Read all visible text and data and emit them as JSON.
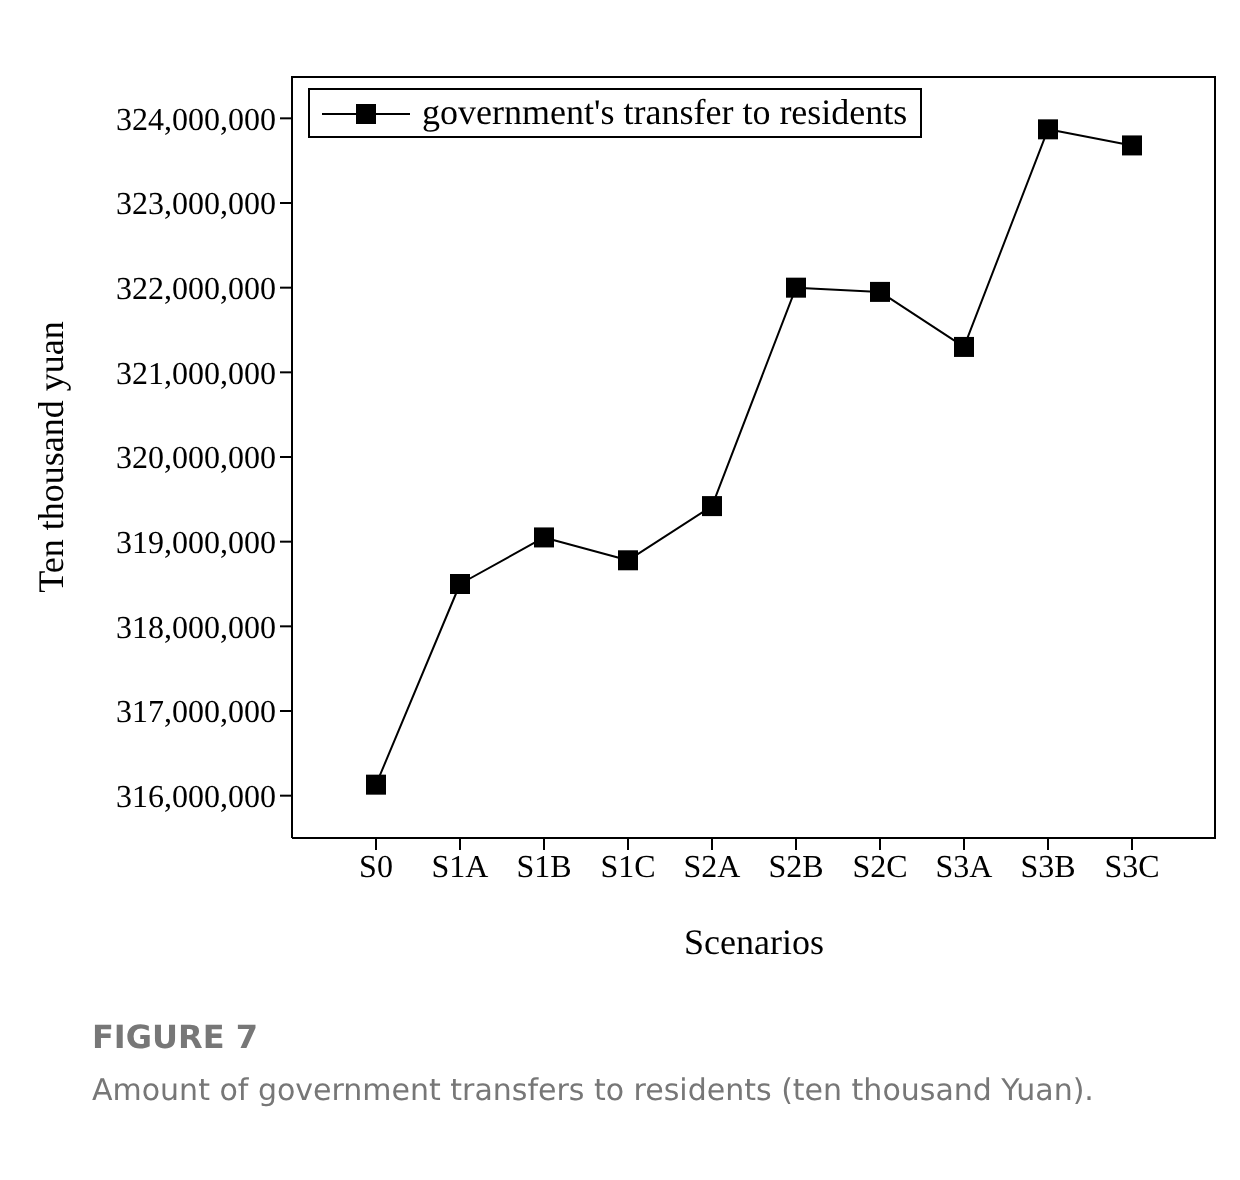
{
  "chart_data": {
    "type": "line",
    "xlabel": "Scenarios",
    "ylabel": "Ten thousand yuan",
    "categories": [
      "S0",
      "S1A",
      "S1B",
      "S1C",
      "S2A",
      "S2B",
      "S2C",
      "S3A",
      "S3B",
      "S3C"
    ],
    "series": [
      {
        "name": "government's transfer to residents",
        "color": "#000000",
        "values": [
          316130000,
          318500000,
          319050000,
          318780000,
          319420000,
          322000000,
          321950000,
          321300000,
          323870000,
          323680000
        ]
      }
    ],
    "ylim": [
      315500000,
      324500000
    ],
    "yticks": [
      {
        "value": 316000000,
        "label": "316,000,000"
      },
      {
        "value": 317000000,
        "label": "317,000,000"
      },
      {
        "value": 318000000,
        "label": "318,000,000"
      },
      {
        "value": 319000000,
        "label": "319,000,000"
      },
      {
        "value": 320000000,
        "label": "320,000,000"
      },
      {
        "value": 321000000,
        "label": "321,000,000"
      },
      {
        "value": 322000000,
        "label": "322,000,000"
      },
      {
        "value": 323000000,
        "label": "323,000,000"
      },
      {
        "value": 324000000,
        "label": "324,000,000"
      }
    ],
    "grid": false,
    "legend": "top left",
    "marker": "square",
    "line_style": "solid",
    "annotations": [
      "FIGURE 7",
      "Amount of government transfers to residents (ten thousand Yuan)."
    ]
  }
}
